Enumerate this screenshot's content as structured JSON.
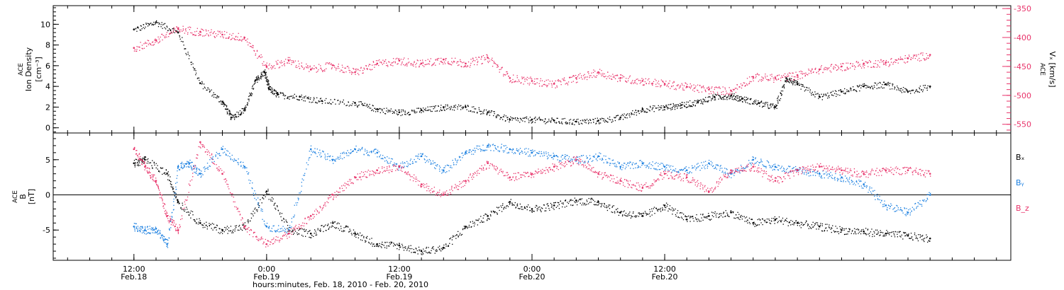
{
  "chart_data": [
    {
      "type": "scatter",
      "panel": "top",
      "left_axis": {
        "label_lines": [
          "ACE",
          "Ion Density",
          "[cm⁻³]"
        ],
        "ylim": [
          -0.5,
          11.8
        ],
        "ticks": [
          "0",
          "2",
          "4",
          "6",
          "8",
          "10"
        ],
        "tick_values": [
          0,
          2,
          4,
          6,
          8,
          10
        ]
      },
      "right_axis": {
        "label_lines": [
          "ACE",
          "Vₓ [km/s]"
        ],
        "ylim": [
          -565,
          -345
        ],
        "ticks": [
          "-350",
          "-400",
          "-450",
          "-500",
          "-550"
        ],
        "tick_values": [
          -350,
          -400,
          -450,
          -500,
          -550
        ]
      },
      "series": [
        {
          "key": "density",
          "axis": "left",
          "color": "#000000",
          "x": [
            0,
            2,
            4,
            6,
            8,
            8.8,
            10,
            11,
            11.8,
            12.2,
            13,
            15,
            17,
            20,
            22,
            24,
            26,
            28,
            30,
            32,
            34,
            36,
            38,
            40,
            42,
            44,
            46,
            48,
            49.5,
            51,
            52.5,
            54,
            55,
            56.5,
            58,
            59,
            60,
            62,
            64,
            66,
            68,
            70,
            72
          ],
          "y": [
            9.5,
            10.2,
            9.2,
            4.3,
            2.5,
            1.0,
            1.8,
            4.6,
            5.4,
            3.8,
            3.2,
            3.0,
            2.6,
            2.4,
            1.8,
            1.5,
            1.7,
            2.0,
            2.0,
            1.5,
            0.8,
            0.8,
            0.7,
            0.6,
            0.7,
            1.0,
            1.8,
            2.0,
            2.2,
            2.5,
            3.0,
            3.1,
            2.8,
            2.4,
            2.0,
            4.8,
            4.2,
            3.0,
            3.5,
            4.0,
            4.2,
            3.5,
            4.0
          ]
        },
        {
          "key": "vx",
          "axis": "right",
          "color": "#e8336a",
          "x": [
            0,
            2,
            4,
            6,
            8,
            10,
            12,
            14,
            16,
            18,
            20,
            22,
            24,
            26,
            28,
            30,
            32,
            34,
            36,
            38,
            40,
            42,
            44,
            46,
            48,
            50,
            52,
            54,
            56,
            58,
            60,
            62,
            64,
            66,
            68,
            70,
            72
          ],
          "y": [
            -418,
            -405,
            -385,
            -390,
            -395,
            -400,
            -450,
            -440,
            -455,
            -448,
            -460,
            -445,
            -440,
            -445,
            -438,
            -445,
            -435,
            -470,
            -475,
            -480,
            -470,
            -460,
            -470,
            -475,
            -480,
            -485,
            -490,
            -492,
            -468,
            -470,
            -465,
            -455,
            -450,
            -445,
            -443,
            -436,
            -430
          ]
        }
      ]
    },
    {
      "type": "scatter",
      "panel": "bottom",
      "left_axis": {
        "label_lines": [
          "ACE",
          "B",
          "[nT]"
        ],
        "ylim": [
          -9.3,
          8.8
        ],
        "ticks": [
          "-5",
          "0",
          "5"
        ],
        "tick_values": [
          -5,
          0,
          5
        ]
      },
      "series": [
        {
          "key": "bx",
          "name": "Bₓ",
          "color": "#000000",
          "x": [
            0,
            1,
            3,
            4,
            6,
            8,
            10,
            12,
            14,
            16,
            18,
            20,
            22,
            24,
            26,
            28,
            30,
            32,
            34,
            36,
            38,
            40,
            42,
            44,
            46,
            48,
            50,
            52,
            54,
            56,
            58,
            60,
            62,
            64,
            66,
            68,
            70,
            72
          ],
          "y": [
            4.5,
            5.0,
            3.0,
            -1.0,
            -4.0,
            -5.0,
            -4.5,
            0.5,
            -5.0,
            -5.5,
            -4.0,
            -5.5,
            -7.0,
            -7.2,
            -8.0,
            -7.5,
            -4.5,
            -3.0,
            -1.0,
            -2.0,
            -1.5,
            -0.8,
            -1.0,
            -2.5,
            -3.0,
            -1.5,
            -3.5,
            -3.0,
            -2.5,
            -4.0,
            -3.5,
            -4.0,
            -4.5,
            -5.0,
            -5.2,
            -5.5,
            -5.8,
            -6.2
          ]
        },
        {
          "key": "by",
          "name": "Bᵧ",
          "color": "#1a7fe0",
          "x": [
            0,
            1,
            2,
            3,
            4,
            5,
            6,
            8,
            10,
            12,
            14,
            16,
            18,
            20,
            22,
            24,
            26,
            28,
            30,
            32,
            34,
            36,
            38,
            40,
            42,
            44,
            46,
            48,
            50,
            52,
            54,
            56,
            58,
            60,
            62,
            64,
            66,
            68,
            70,
            72
          ],
          "y": [
            -4.5,
            -5.0,
            -4.8,
            -7.0,
            4.0,
            4.5,
            3.0,
            6.5,
            4.0,
            -4.5,
            -5.0,
            6.5,
            5.0,
            6.5,
            6.0,
            4.0,
            5.5,
            3.5,
            6.0,
            7.0,
            6.5,
            6.0,
            5.5,
            5.0,
            5.5,
            4.0,
            4.5,
            4.0,
            3.5,
            4.5,
            3.0,
            5.0,
            4.0,
            3.5,
            3.0,
            2.5,
            1.5,
            -1.5,
            -2.5,
            0.0
          ]
        },
        {
          "key": "bz",
          "name": "B_z",
          "color": "#e8336a",
          "x": [
            0,
            1,
            2,
            3,
            4,
            6,
            8,
            10,
            12,
            14,
            16,
            18,
            20,
            22,
            24,
            26,
            28,
            30,
            32,
            34,
            36,
            38,
            40,
            42,
            44,
            46,
            48,
            50,
            52,
            54,
            56,
            58,
            60,
            62,
            64,
            66,
            68,
            70,
            72
          ],
          "y": [
            6.5,
            4.0,
            2.0,
            -3.0,
            -5.0,
            7.5,
            3.0,
            -4.5,
            -7.0,
            -5.5,
            -3.0,
            0.0,
            2.5,
            3.5,
            4.0,
            1.5,
            0.0,
            2.0,
            4.5,
            2.5,
            3.0,
            4.0,
            5.0,
            3.0,
            2.0,
            1.0,
            3.0,
            2.5,
            0.5,
            3.5,
            4.0,
            2.0,
            3.5,
            4.0,
            3.5,
            3.0,
            3.5,
            3.5,
            3.0
          ]
        }
      ],
      "zero_line": 0
    }
  ],
  "x_axis": {
    "title": "hours:minutes, Feb. 18, 2010 - Feb. 20, 2010",
    "range_hours": [
      -7.3,
      79.3
    ],
    "ticks": [
      {
        "time": "12:00",
        "date": "Feb.18",
        "hours": 0
      },
      {
        "time": "0:00",
        "date": "Feb.19",
        "hours": 12
      },
      {
        "time": "12:00",
        "date": "Feb.19",
        "hours": 24
      },
      {
        "time": "0:00",
        "date": "Feb.20",
        "hours": 36
      },
      {
        "time": "12:00",
        "date": "Feb.20",
        "hours": 48
      }
    ],
    "minor_per_major": 6
  },
  "legend": [
    {
      "label": "Bₓ",
      "color": "#000000"
    },
    {
      "label": "Bᵧ",
      "color": "#1a7fe0"
    },
    {
      "label": "B_z",
      "color": "#e8336a"
    }
  ]
}
